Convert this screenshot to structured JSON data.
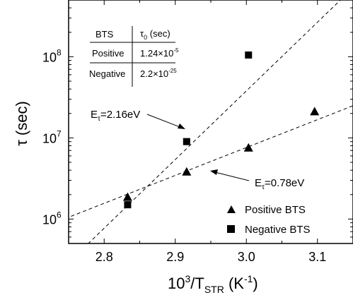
{
  "chart_data": {
    "type": "scatter",
    "xlabel": {
      "base": "10",
      "sup1": "3",
      "mid": "/T",
      "sub": "STR",
      "open": " (K",
      "sup2": "-1",
      "close": ")"
    },
    "ylabel": {
      "symbol": "τ",
      "unit": "(sec)"
    },
    "xlim": [
      2.75,
      3.15
    ],
    "ylim": [
      500000,
      500000000
    ],
    "y_scale": "log",
    "x_ticks": [
      "2.8",
      "2.9",
      "3.0",
      "3.1"
    ],
    "x_tick_values": [
      2.8,
      2.9,
      3.0,
      3.1
    ],
    "y_ticks": [
      {
        "value": 1000000,
        "base": "10",
        "exp": "6"
      },
      {
        "value": 10000000,
        "base": "10",
        "exp": "7"
      },
      {
        "value": 100000000,
        "base": "10",
        "exp": "8"
      }
    ],
    "series": [
      {
        "name": "Positive BTS",
        "marker": "triangle",
        "x": [
          2.833,
          2.916,
          3.003,
          3.096
        ],
        "y": [
          1850000,
          3800000,
          7500000,
          21000000
        ],
        "fit": {
          "x": [
            2.72,
            3.2
          ],
          "y": [
            830000,
            37000000
          ]
        }
      },
      {
        "name": "Negative BTS",
        "marker": "square",
        "x": [
          2.833,
          2.916,
          3.003
        ],
        "y": [
          1500000,
          9000000,
          105000000
        ],
        "fit": {
          "x": [
            2.7,
            3.14
          ],
          "y": [
            110000,
            580000000
          ]
        }
      }
    ],
    "annotations": [
      {
        "main": "E",
        "sub": "τ",
        "rest": "=2.16eV"
      },
      {
        "main": "E",
        "sub": "τ",
        "rest": "=0.78eV"
      }
    ],
    "table": {
      "header": [
        "BTS",
        "τ",
        "0",
        " (sec)"
      ],
      "rows": [
        {
          "label": "Positive",
          "mant": "1.24×10",
          "exp": "-5"
        },
        {
          "label": "Negative",
          "mant": "2.2×10",
          "exp": "-25"
        }
      ]
    },
    "grid": false,
    "legend_position": "bottom-right"
  }
}
